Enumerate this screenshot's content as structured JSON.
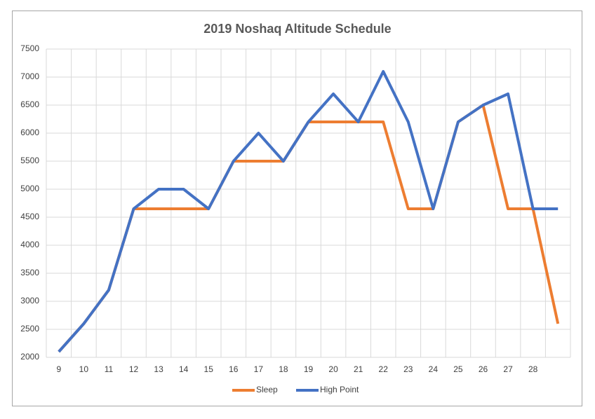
{
  "chart_data": {
    "type": "line",
    "title": "2019 Noshaq Altitude Schedule",
    "categories": [
      "9",
      "10",
      "11",
      "12",
      "13",
      "14",
      "15",
      "16",
      "17",
      "18",
      "19",
      "20",
      "21",
      "22",
      "23",
      "24",
      "25",
      "26",
      "27",
      "28",
      null
    ],
    "series": [
      {
        "name": "Sleep",
        "color": "#ed7d31",
        "values": [
          2100,
          2600,
          3200,
          4650,
          4650,
          4650,
          4650,
          5500,
          5500,
          5500,
          6200,
          6200,
          6200,
          6200,
          4650,
          4650,
          6200,
          6500,
          4650,
          4650,
          2600
        ]
      },
      {
        "name": "High Point",
        "color": "#4472c4",
        "values": [
          2100,
          2600,
          3200,
          4650,
          5000,
          5000,
          4650,
          5500,
          6000,
          5500,
          6200,
          6700,
          6200,
          7100,
          6200,
          4650,
          6200,
          6500,
          6700,
          4650,
          4650
        ]
      }
    ],
    "ylim": [
      2000,
      7500
    ],
    "yticks": [
      2000,
      2500,
      3000,
      3500,
      4000,
      4500,
      5000,
      5500,
      6000,
      6500,
      7000,
      7500
    ],
    "grid": true,
    "legend": "bottom"
  }
}
